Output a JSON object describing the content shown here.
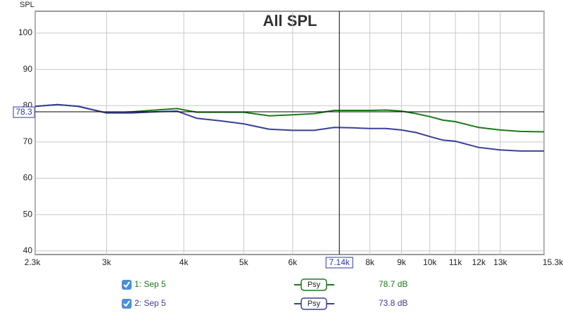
{
  "chart_data": {
    "type": "line",
    "title": "All SPL",
    "y_label": "SPL",
    "x_scale": "log",
    "xlim": [
      2300,
      15300
    ],
    "ylim": [
      39,
      106
    ],
    "grid": true,
    "xticks": [
      {
        "value": 2300,
        "label": "2.3k"
      },
      {
        "value": 3000,
        "label": "3k"
      },
      {
        "value": 4000,
        "label": "4k"
      },
      {
        "value": 5000,
        "label": "5k"
      },
      {
        "value": 6000,
        "label": "6k"
      },
      {
        "value": 8000,
        "label": "8k"
      },
      {
        "value": 9000,
        "label": "9k"
      },
      {
        "value": 10000,
        "label": "10k"
      },
      {
        "value": 11000,
        "label": "11k"
      },
      {
        "value": 12000,
        "label": "12k"
      },
      {
        "value": 13000,
        "label": "13k"
      },
      {
        "value": 15300,
        "label": "15.3kHz"
      }
    ],
    "yticks": [
      40,
      50,
      60,
      70,
      80,
      90,
      100
    ],
    "cursor": {
      "x": {
        "value": 7140,
        "label": "7.14k"
      },
      "y": 78.3
    },
    "x": [
      2300,
      2500,
      2700,
      3000,
      3300,
      3600,
      3900,
      4200,
      4600,
      5000,
      5500,
      6000,
      6500,
      7000,
      7500,
      8000,
      8500,
      9000,
      9500,
      10000,
      10500,
      11000,
      12000,
      13000,
      14000,
      15300
    ],
    "series": [
      {
        "name": "1: Sep 5",
        "color": "#1b7a1b",
        "smoothing": "Psy",
        "readout": "78.7 dB",
        "values": [
          79.8,
          80.3,
          79.8,
          78.0,
          78.3,
          78.8,
          79.2,
          78.2,
          78.2,
          78.2,
          77.2,
          77.5,
          77.8,
          78.7,
          78.7,
          78.7,
          78.8,
          78.5,
          77.8,
          77.0,
          76.0,
          75.6,
          74.0,
          73.3,
          72.9,
          72.8
        ]
      },
      {
        "name": "2: Sep 5",
        "color": "#3a3f96",
        "smoothing": "Psy",
        "readout": "73.8 dB",
        "values": [
          79.8,
          80.3,
          79.8,
          78.0,
          78.0,
          78.3,
          78.5,
          76.5,
          75.8,
          75.0,
          73.5,
          73.2,
          73.2,
          74.0,
          73.9,
          73.7,
          73.7,
          73.3,
          72.6,
          71.5,
          70.5,
          70.2,
          68.5,
          67.8,
          67.5,
          67.5
        ]
      }
    ]
  }
}
